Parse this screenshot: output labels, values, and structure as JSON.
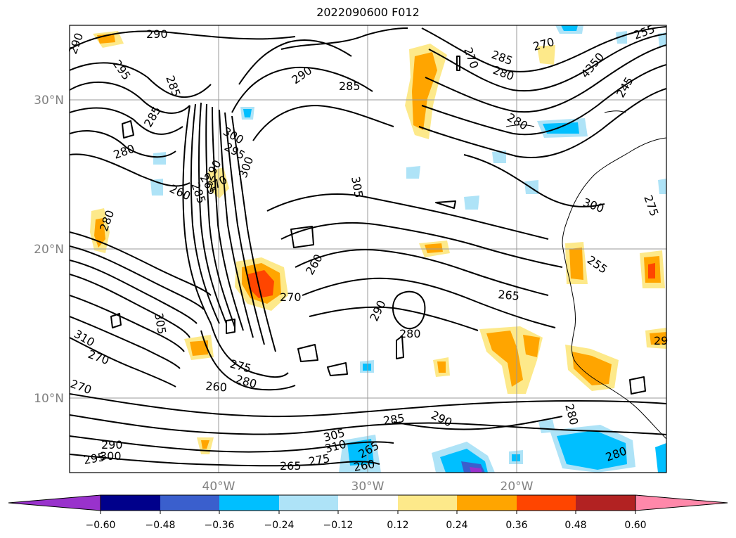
{
  "title": "2022090600 F012",
  "axes": {
    "lon_labels": [
      "40°W",
      "30°W",
      "20°W"
    ],
    "lat_labels": [
      "30°N",
      "20°N",
      "10°N"
    ]
  },
  "contour_labels": [
    "290",
    "295",
    "285",
    "290",
    "285",
    "270",
    "285",
    "280",
    "270",
    "4350",
    "255",
    "245",
    "290",
    "285",
    "280",
    "300",
    "295",
    "290",
    "285",
    "265",
    "270",
    "260",
    "280",
    "305",
    "300",
    "275",
    "260",
    "255",
    "270",
    "265",
    "290",
    "280",
    "305",
    "310",
    "270",
    "275",
    "280",
    "260",
    "270",
    "285",
    "290",
    "280",
    "280",
    "290",
    "295",
    "300",
    "305",
    "310",
    "265",
    "275",
    "260",
    "265",
    "280",
    "29",
    "300"
  ],
  "colorbar": {
    "ticks": [
      "−0.60",
      "−0.48",
      "−0.36",
      "−0.24",
      "−0.12",
      "0.12",
      "0.24",
      "0.36",
      "0.48",
      "0.60"
    ],
    "colors": [
      "#9932cc",
      "#00008b",
      "#3a5fcd",
      "#00bfff",
      "#aee3f7",
      "#ffffff",
      "#fde98a",
      "#ffa500",
      "#ff4500",
      "#b22222",
      "#ff88aa"
    ]
  }
}
